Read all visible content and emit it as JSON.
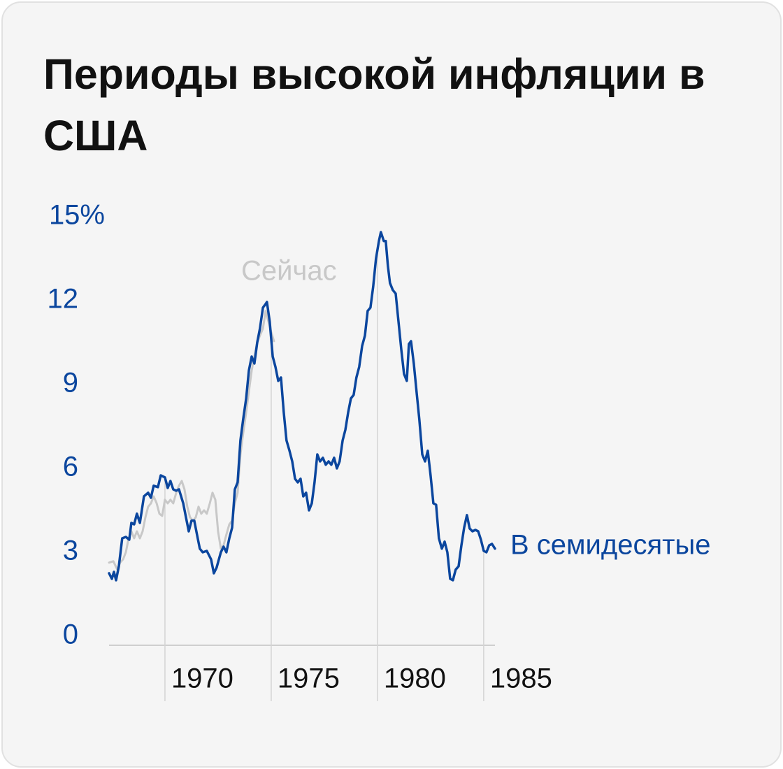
{
  "chart_data": {
    "type": "line",
    "title": "Периоды высокой инфляции в США",
    "xlim": [
      1967.37,
      1985.53
    ],
    "ylim": [
      0,
      15
    ],
    "xticks": [
      1970,
      1975,
      1980,
      1985
    ],
    "yticks": [
      0,
      3,
      6,
      9,
      12,
      {
        "value": 15,
        "label": "15%"
      }
    ],
    "series": [
      {
        "name": "Сейчас",
        "color": "#c8c8c8",
        "x": [
          1967.37,
          1967.57,
          1967.76,
          1967.89,
          1968.03,
          1968.16,
          1968.29,
          1968.42,
          1968.55,
          1968.68,
          1968.82,
          1968.95,
          1969.08,
          1969.21,
          1969.34,
          1969.47,
          1969.61,
          1969.74,
          1969.87,
          1970.0,
          1970.13,
          1970.26,
          1970.39,
          1970.53,
          1970.66,
          1970.79,
          1970.92,
          1971.05,
          1971.18,
          1971.32,
          1971.45,
          1971.58,
          1971.71,
          1971.84,
          1971.97,
          1972.11,
          1972.24,
          1972.37,
          1972.5,
          1972.63,
          1972.76,
          1972.89,
          1973.03,
          1973.16,
          1973.29,
          1973.42,
          1973.55,
          1973.68,
          1973.82,
          1973.95,
          1974.08,
          1974.21,
          1974.34,
          1974.47,
          1974.61,
          1974.74,
          1974.87,
          1975.0,
          1975.13
        ],
        "values": [
          2.63,
          2.68,
          2.38,
          2.63,
          2.75,
          3.0,
          3.5,
          3.75,
          3.5,
          3.75,
          3.5,
          3.75,
          4.25,
          4.63,
          4.75,
          5.0,
          4.75,
          4.38,
          4.3,
          4.88,
          4.75,
          4.88,
          4.75,
          5.13,
          5.38,
          5.55,
          5.25,
          4.63,
          4.25,
          4.13,
          4.25,
          4.63,
          4.38,
          4.5,
          4.38,
          4.75,
          5.13,
          4.88,
          3.75,
          3.13,
          3.25,
          3.63,
          4.0,
          4.13,
          4.75,
          5.13,
          6.5,
          7.25,
          8.0,
          8.75,
          9.5,
          10.0,
          10.5,
          10.75,
          11.0,
          11.63,
          11.25,
          10.88,
          10.55
        ]
      },
      {
        "name": "В семидесятые",
        "color": "#0b469e",
        "x": [
          1967.37,
          1967.5,
          1967.6,
          1967.7,
          1967.83,
          1967.99,
          1968.16,
          1968.32,
          1968.42,
          1968.55,
          1968.68,
          1968.82,
          1969.01,
          1969.21,
          1969.34,
          1969.47,
          1969.67,
          1969.8,
          1970.0,
          1970.13,
          1970.26,
          1970.39,
          1970.53,
          1970.66,
          1970.86,
          1970.99,
          1971.12,
          1971.25,
          1971.38,
          1971.51,
          1971.64,
          1971.78,
          1971.97,
          1972.17,
          1972.3,
          1972.43,
          1972.63,
          1972.76,
          1972.89,
          1973.03,
          1973.16,
          1973.29,
          1973.42,
          1973.55,
          1973.68,
          1973.82,
          1973.95,
          1974.08,
          1974.21,
          1974.34,
          1974.47,
          1974.61,
          1974.74,
          1974.8,
          1974.93,
          1975.07,
          1975.2,
          1975.33,
          1975.46,
          1975.59,
          1975.72,
          1975.86,
          1975.99,
          1976.12,
          1976.25,
          1976.38,
          1976.51,
          1976.64,
          1976.78,
          1976.91,
          1977.04,
          1977.17,
          1977.3,
          1977.43,
          1977.57,
          1977.7,
          1977.83,
          1977.96,
          1978.09,
          1978.22,
          1978.36,
          1978.49,
          1978.62,
          1978.75,
          1978.88,
          1979.01,
          1979.14,
          1979.28,
          1979.41,
          1979.54,
          1979.67,
          1979.8,
          1979.93,
          1980.07,
          1980.16,
          1980.3,
          1980.39,
          1980.49,
          1980.59,
          1980.72,
          1980.86,
          1980.99,
          1981.12,
          1981.25,
          1981.38,
          1981.48,
          1981.58,
          1981.71,
          1981.84,
          1981.97,
          1982.11,
          1982.24,
          1982.37,
          1982.5,
          1982.63,
          1982.76,
          1982.89,
          1983.03,
          1983.16,
          1983.29,
          1983.42,
          1983.55,
          1983.68,
          1983.82,
          1983.95,
          1984.08,
          1984.21,
          1984.34,
          1984.47,
          1984.61,
          1984.74,
          1984.87,
          1985.0,
          1985.13,
          1985.26,
          1985.39,
          1985.53
        ],
        "values": [
          2.25,
          2.05,
          2.3,
          2.0,
          2.5,
          3.5,
          3.55,
          3.45,
          4.05,
          4.0,
          4.38,
          4.05,
          5.0,
          5.13,
          4.95,
          5.38,
          5.33,
          5.75,
          5.68,
          5.3,
          5.55,
          5.25,
          5.2,
          5.25,
          4.75,
          4.25,
          3.75,
          4.13,
          4.13,
          3.63,
          3.13,
          3.0,
          3.05,
          2.75,
          2.25,
          2.45,
          3.0,
          3.2,
          3.0,
          3.5,
          3.88,
          5.25,
          5.5,
          7.0,
          7.75,
          8.5,
          9.5,
          10.0,
          9.75,
          10.5,
          11.0,
          11.75,
          11.88,
          11.95,
          11.25,
          10.0,
          9.63,
          9.13,
          9.25,
          8.0,
          7.0,
          6.63,
          6.25,
          5.63,
          5.5,
          5.63,
          5.0,
          5.13,
          4.5,
          4.75,
          5.5,
          6.5,
          6.25,
          6.38,
          6.13,
          6.25,
          6.13,
          6.38,
          6.0,
          6.25,
          7.0,
          7.38,
          8.0,
          8.5,
          8.63,
          9.25,
          9.63,
          10.38,
          10.75,
          11.63,
          11.75,
          12.5,
          13.5,
          14.13,
          14.45,
          14.13,
          14.13,
          13.25,
          12.63,
          12.38,
          12.25,
          11.25,
          10.25,
          9.38,
          9.13,
          10.45,
          10.55,
          9.75,
          8.75,
          7.75,
          6.5,
          6.25,
          6.63,
          5.75,
          4.75,
          4.7,
          3.5,
          3.13,
          3.38,
          3.0,
          2.05,
          2.0,
          2.38,
          2.5,
          3.25,
          3.88,
          4.33,
          3.85,
          3.75,
          3.8,
          3.75,
          3.45,
          3.05,
          3.0,
          3.25,
          3.3,
          3.13
        ]
      }
    ]
  }
}
